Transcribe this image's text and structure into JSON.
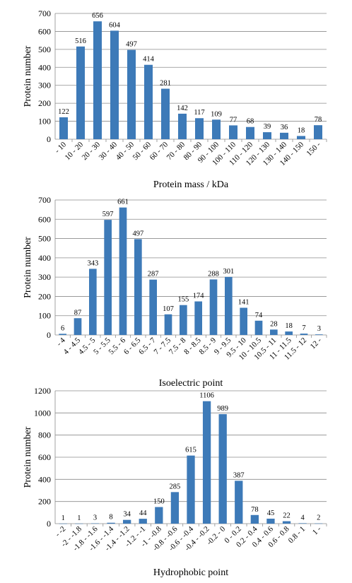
{
  "chart_data": [
    {
      "type": "bar",
      "title": "",
      "xlabel": "Protein mass / kDa",
      "ylabel": "Protein number",
      "ylim": [
        0,
        700
      ],
      "yticks": [
        0,
        100,
        200,
        300,
        400,
        500,
        600,
        700
      ],
      "grid": true,
      "bar_color": "#3d7ab8",
      "categories": [
        "- 10",
        "10 - 20",
        "20 - 30",
        "30 - 40",
        "40 - 50",
        "50 - 60",
        "60 - 70",
        "70 - 80",
        "80 - 90",
        "90 - 100",
        "100 - 110",
        "110 - 120",
        "120 - 130",
        "130 - 140",
        "140 - 150",
        "150 -"
      ],
      "values": [
        122,
        516,
        656,
        604,
        497,
        414,
        281,
        142,
        117,
        109,
        77,
        68,
        39,
        36,
        18,
        78
      ]
    },
    {
      "type": "bar",
      "title": "",
      "xlabel": "Isoelectric point",
      "ylabel": "Protein number",
      "ylim": [
        0,
        700
      ],
      "yticks": [
        0,
        100,
        200,
        300,
        400,
        500,
        600,
        700
      ],
      "grid": true,
      "bar_color": "#3d7ab8",
      "categories": [
        "- 4",
        "4 - 4.5",
        "4.5 - 5",
        "5 - 5.5",
        "5.5 - 6",
        "6 - 6.5",
        "6.5 - 7",
        "7 - 7.5",
        "7.5 - 8",
        "8 - 8.5",
        "8.5 - 9",
        "9 - 9.5",
        "9.5 - 10",
        "10 - 10.5",
        "10.5 - 11",
        "11 - 11.5",
        "11.5 - 12",
        "12 -"
      ],
      "values": [
        6,
        87,
        343,
        597,
        661,
        497,
        287,
        107,
        155,
        174,
        288,
        301,
        141,
        74,
        28,
        18,
        7,
        3
      ]
    },
    {
      "type": "bar",
      "title": "",
      "xlabel": "Hydrophobic point",
      "ylabel": "Protein number",
      "ylim": [
        0,
        1200
      ],
      "yticks": [
        0,
        200,
        400,
        600,
        800,
        1000,
        1200
      ],
      "grid": true,
      "bar_color": "#3d7ab8",
      "categories": [
        "- -2",
        "-2 - -1.8",
        "-1.8 - -1.6",
        "-1.6 - -1.4",
        "-1.4 - -1.2",
        "-1.2 - -1",
        "-1 - -0.8",
        "-0.8 - -0.6",
        "-0.6 - -0.4",
        "-0.4 - -0.2",
        "-0.2 - 0",
        "0 - 0.2",
        "0.2 - 0.4",
        "0.4 - 0.6",
        "0.6 - 0.8",
        "0.8 - 1",
        "1 -"
      ],
      "values": [
        1,
        1,
        3,
        8,
        34,
        44,
        150,
        285,
        615,
        1106,
        989,
        387,
        78,
        45,
        22,
        4,
        2
      ]
    }
  ]
}
